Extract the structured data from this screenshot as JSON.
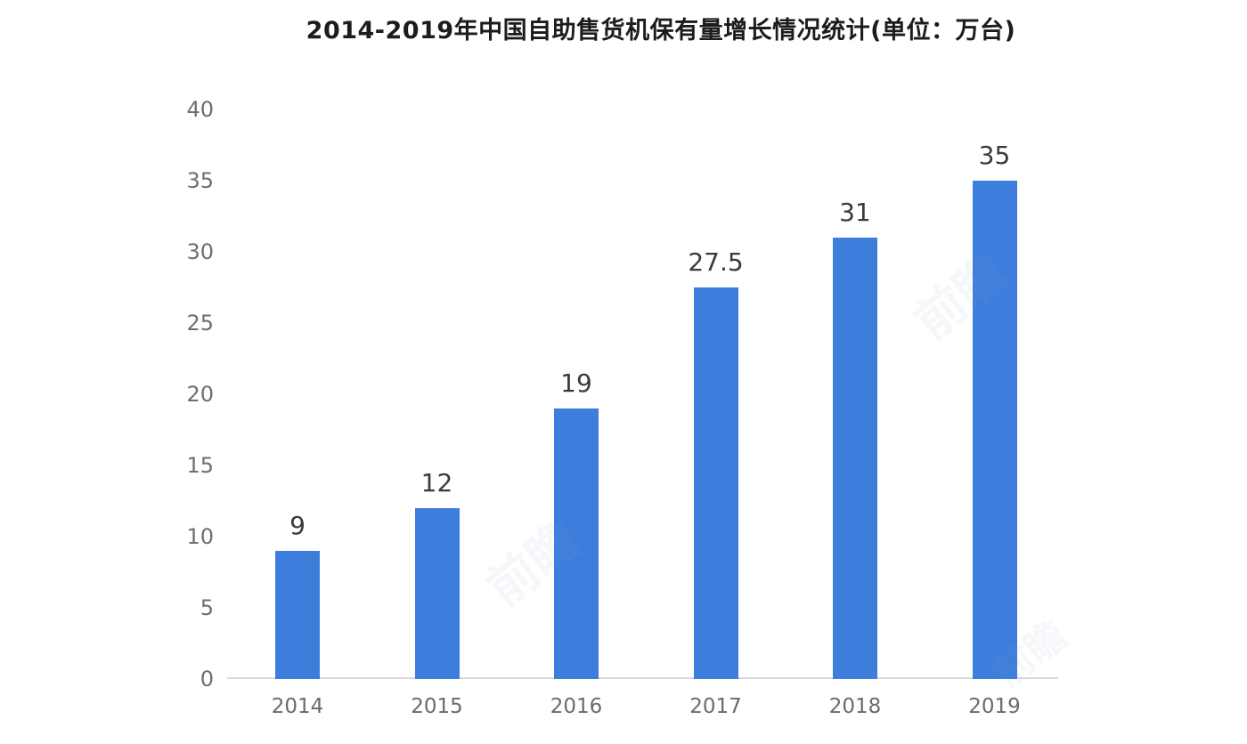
{
  "title": "2014-2019年中国自助售货机保有量增长情况统计(单位：万台)",
  "colors": {
    "bar": "#3d7edc",
    "axis_line": "#d9d9d9",
    "y_tick_label": "#6f6f6f",
    "x_tick_label": "#6b6b6b",
    "value_label": "#3a3a3a",
    "title": "#1c1c1c",
    "background": "#ffffff"
  },
  "watermark": {
    "text": "前瞻"
  },
  "chart_data": {
    "type": "bar",
    "title": "2014-2019年中国自助售货机保有量增长情况统计(单位：万台)",
    "unit_label": "万台",
    "categories": [
      "2014",
      "2015",
      "2016",
      "2017",
      "2018",
      "2019"
    ],
    "values": [
      9,
      12,
      19,
      27.5,
      31,
      35
    ],
    "value_labels": [
      "9",
      "12",
      "19",
      "27.5",
      "31",
      "35"
    ],
    "xlabel": "",
    "ylabel": "",
    "ylim": [
      0,
      40
    ],
    "yticks": [
      0,
      5,
      10,
      15,
      20,
      25,
      30,
      35,
      40
    ],
    "grid": false,
    "legend_position": "none"
  }
}
